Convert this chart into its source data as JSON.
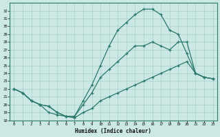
{
  "xlabel": "Humidex (Indice chaleur)",
  "ylabel": "",
  "bg_color": "#cce8e4",
  "line_color": "#2a7868",
  "grid_color": "#a8d0cc",
  "xlim": [
    -0.5,
    23.5
  ],
  "ylim": [
    18,
    33
  ],
  "xticks": [
    0,
    1,
    2,
    3,
    4,
    5,
    6,
    7,
    8,
    9,
    10,
    11,
    12,
    13,
    14,
    15,
    16,
    17,
    18,
    19,
    20,
    21,
    22,
    23
  ],
  "yticks": [
    18,
    19,
    20,
    21,
    22,
    23,
    24,
    25,
    26,
    27,
    28,
    29,
    30,
    31,
    32
  ],
  "line1_x": [
    0,
    1,
    2,
    3,
    4,
    5,
    6,
    7,
    8,
    9,
    10,
    11,
    12,
    13,
    14,
    15,
    16,
    17,
    18,
    19,
    20,
    21,
    22,
    23
  ],
  "line1_y": [
    22.0,
    21.5,
    20.5,
    20.0,
    19.8,
    19.0,
    18.5,
    18.5,
    20.5,
    22.5,
    25.0,
    27.5,
    29.5,
    30.5,
    31.5,
    32.2,
    32.2,
    31.5,
    29.5,
    29.0,
    26.5,
    24.0,
    23.5,
    23.3
  ],
  "line2_x": [
    0,
    1,
    2,
    3,
    4,
    5,
    6,
    7,
    8,
    9,
    10,
    11,
    12,
    13,
    14,
    15,
    16,
    17,
    18,
    19,
    20,
    21,
    22,
    23
  ],
  "line2_y": [
    22.0,
    21.5,
    20.5,
    20.0,
    19.8,
    19.0,
    18.5,
    18.5,
    20.0,
    21.5,
    23.5,
    24.5,
    25.5,
    26.5,
    27.5,
    27.5,
    28.0,
    27.5,
    27.0,
    28.0,
    28.0,
    24.0,
    23.5,
    23.3
  ],
  "line3_x": [
    0,
    1,
    2,
    3,
    4,
    5,
    6,
    7,
    8,
    9,
    10,
    11,
    12,
    13,
    14,
    15,
    16,
    17,
    18,
    19,
    20,
    21,
    22,
    23
  ],
  "line3_y": [
    22.0,
    21.5,
    20.5,
    20.0,
    19.0,
    18.7,
    18.5,
    18.3,
    19.0,
    19.5,
    20.5,
    21.0,
    21.5,
    22.0,
    22.5,
    23.0,
    23.5,
    24.0,
    24.5,
    25.0,
    25.5,
    24.0,
    23.5,
    23.3
  ]
}
